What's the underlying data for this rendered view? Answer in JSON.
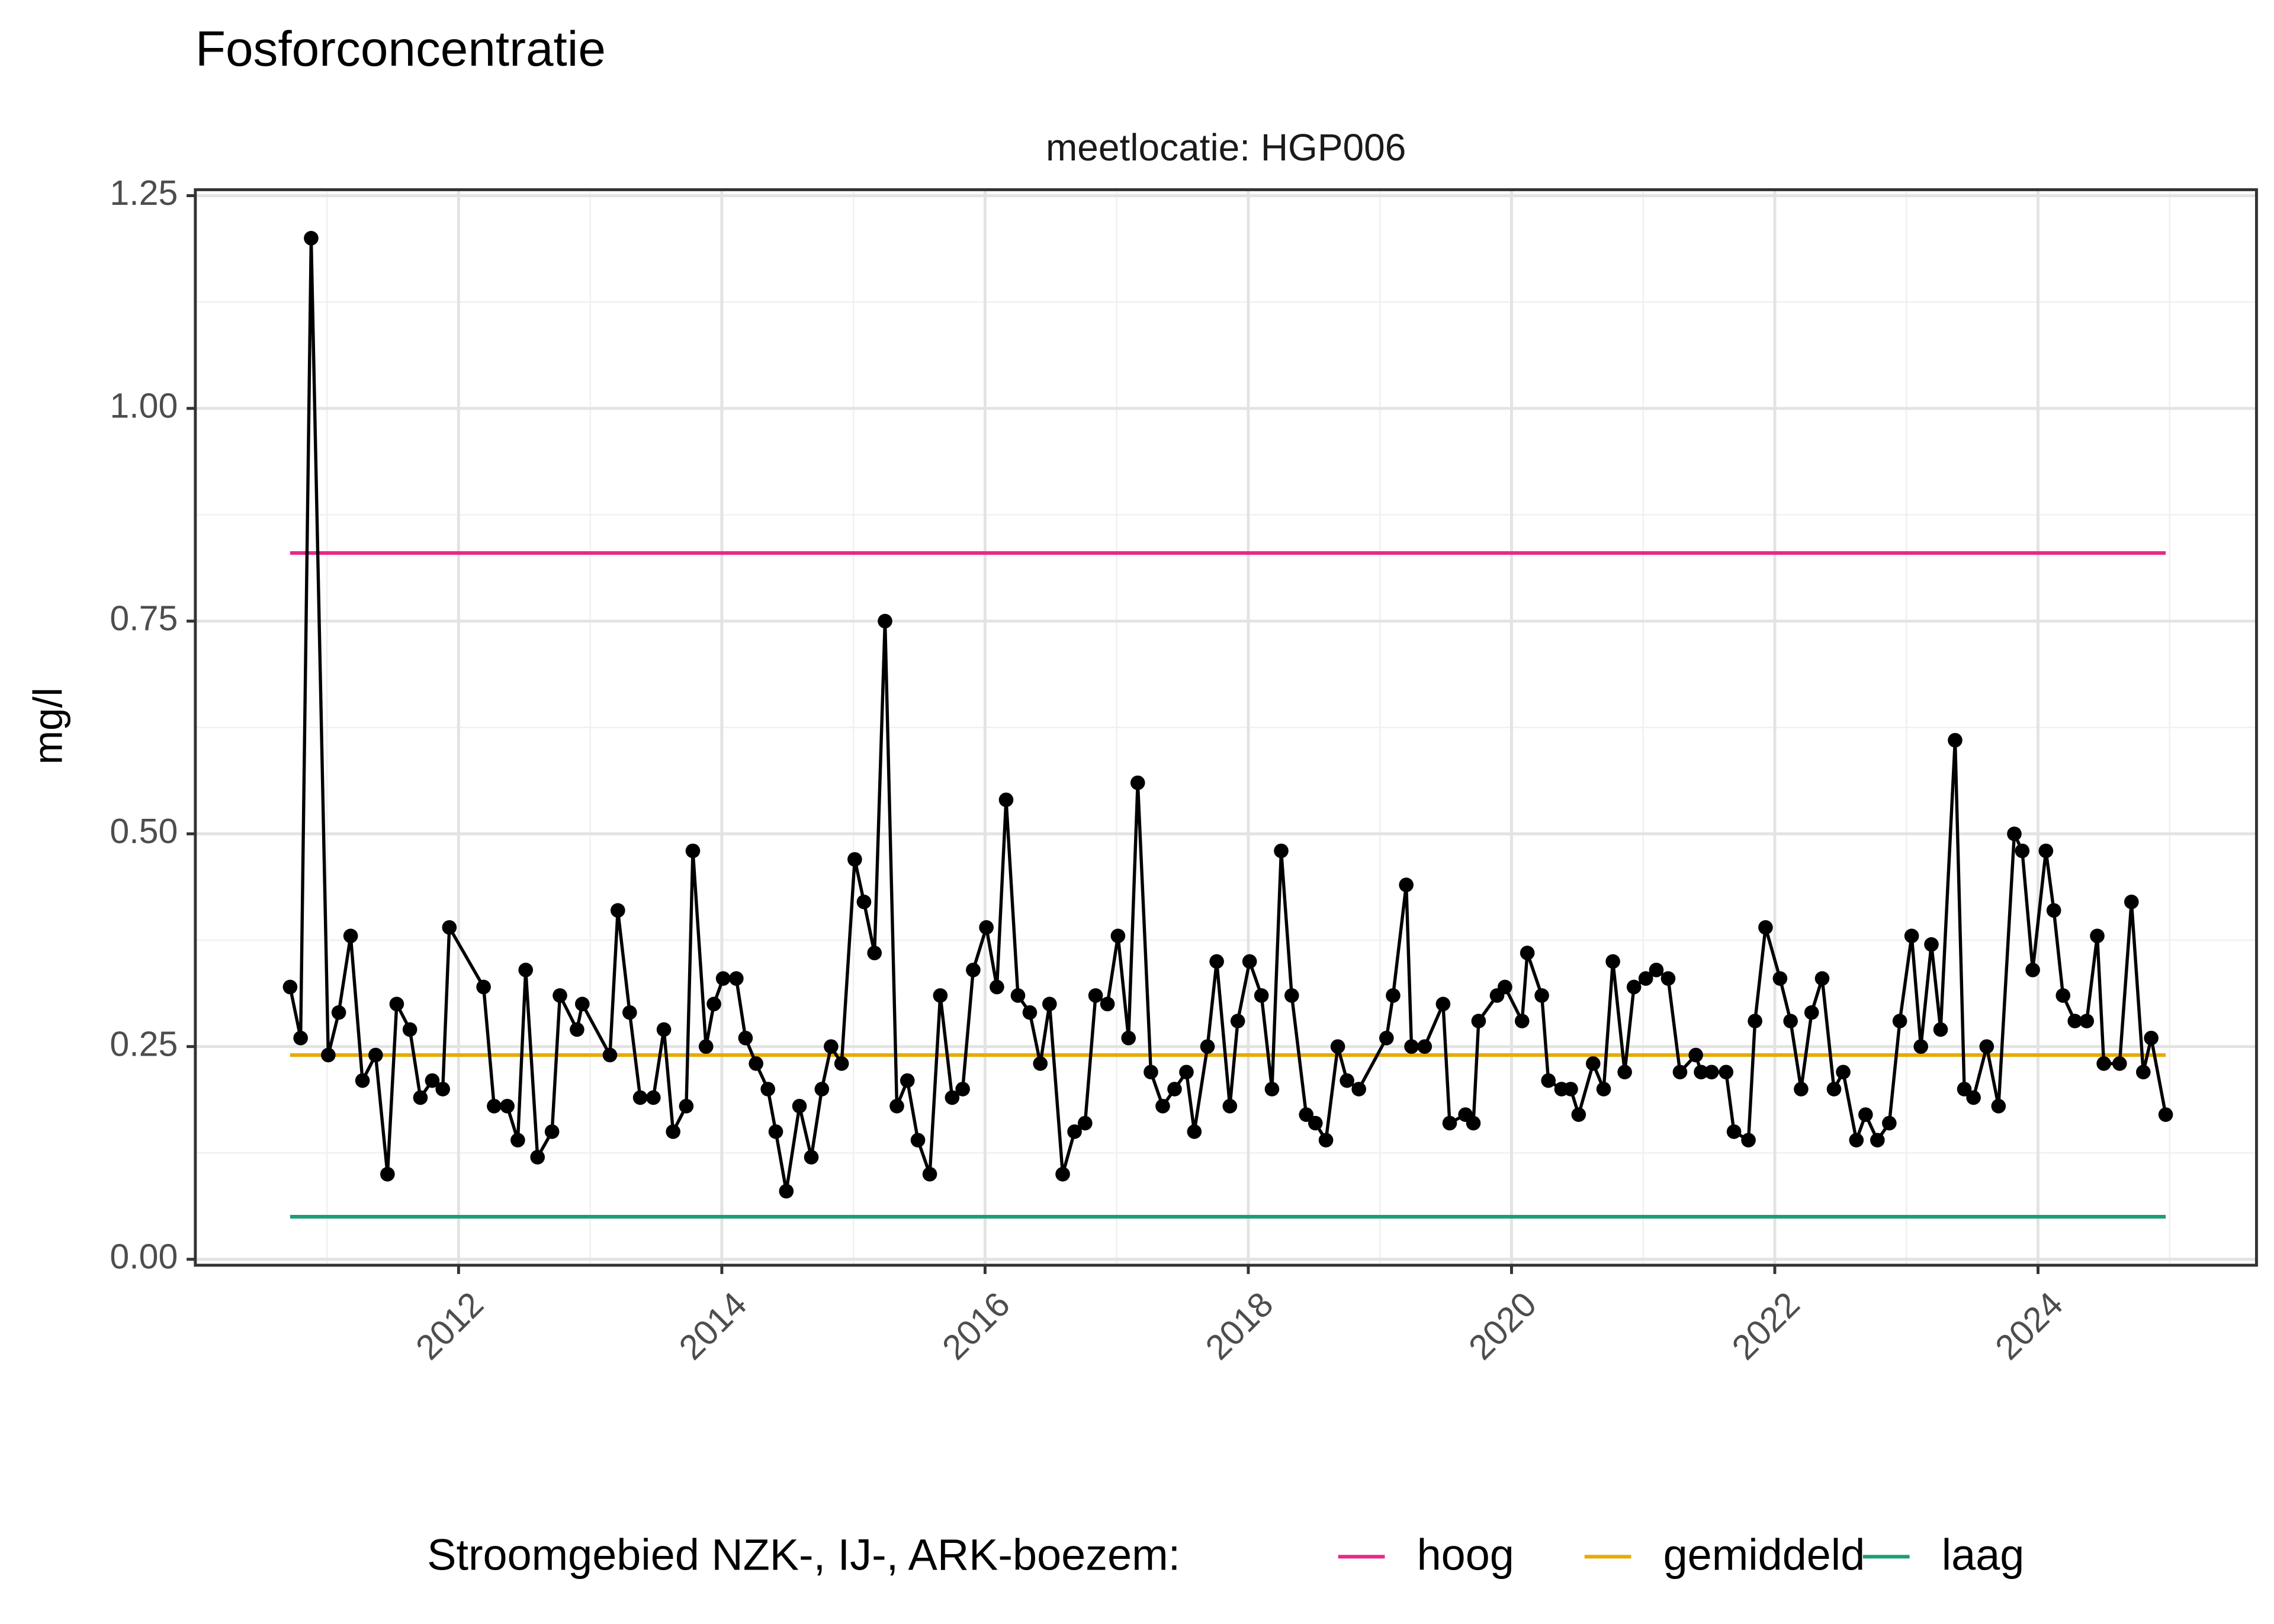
{
  "chart_data": {
    "type": "line",
    "title": "Fosforconcentratie",
    "subtitle": "meetlocatie: HGP006",
    "y_label": "mg/l",
    "legend_title": "Stroomgebied NZK-, IJ-, ARK-boezem:",
    "color": "#000000",
    "grid": true,
    "xlim": [
      2010.0,
      2025.66
    ],
    "ylim": [
      -0.007,
      1.257
    ],
    "xticks": [
      2012,
      2014,
      2016,
      2018,
      2020,
      2022,
      2024
    ],
    "yticks": [
      {
        "value": 0,
        "label": "0.00"
      },
      {
        "value": 0.25,
        "label": "0.25"
      },
      {
        "value": 0.5,
        "label": "0.50"
      },
      {
        "value": 0.75,
        "label": "0.75"
      },
      {
        "value": 1,
        "label": "1.00"
      },
      {
        "value": 1.25,
        "label": "1.25"
      }
    ],
    "reference_lines": [
      {
        "name": "hoog",
        "color": "#e7298a",
        "value": 0.83,
        "x_range": [
          2010.72,
          2024.97
        ]
      },
      {
        "name": "gemiddeld",
        "color": "#e6ab02",
        "value": 0.24,
        "x_range": [
          2010.72,
          2024.97
        ]
      },
      {
        "name": "laag",
        "color": "#1b9e77",
        "value": 0.05,
        "x_range": [
          2010.72,
          2024.97
        ]
      }
    ],
    "x": [
      2010.72,
      2010.8,
      2010.88,
      2011.01,
      2011.09,
      2011.18,
      2011.27,
      2011.37,
      2011.46,
      2011.53,
      2011.63,
      2011.71,
      2011.8,
      2011.88,
      2011.93,
      2012.19,
      2012.27,
      2012.37,
      2012.45,
      2012.51,
      2012.6,
      2012.71,
      2012.77,
      2012.9,
      2012.94,
      2013.15,
      2013.21,
      2013.3,
      2013.38,
      2013.48,
      2013.56,
      2013.63,
      2013.73,
      2013.78,
      2013.88,
      2013.94,
      2014.01,
      2014.11,
      2014.18,
      2014.26,
      2014.35,
      2014.41,
      2014.49,
      2014.59,
      2014.68,
      2014.76,
      2014.83,
      2014.91,
      2015.01,
      2015.08,
      2015.16,
      2015.24,
      2015.33,
      2015.41,
      2015.49,
      2015.58,
      2015.66,
      2015.75,
      2015.83,
      2015.91,
      2016.01,
      2016.09,
      2016.16,
      2016.25,
      2016.34,
      2016.42,
      2016.49,
      2016.59,
      2016.68,
      2016.76,
      2016.84,
      2016.93,
      2017.01,
      2017.09,
      2017.16,
      2017.26,
      2017.35,
      2017.44,
      2017.53,
      2017.59,
      2017.69,
      2017.76,
      2017.86,
      2017.92,
      2018.01,
      2018.1,
      2018.18,
      2018.25,
      2018.33,
      2018.44,
      2018.51,
      2018.59,
      2018.68,
      2018.75,
      2018.84,
      2019.05,
      2019.1,
      2019.2,
      2019.24,
      2019.34,
      2019.48,
      2019.53,
      2019.65,
      2019.71,
      2019.75,
      2019.89,
      2019.95,
      2020.08,
      2020.12,
      2020.23,
      2020.28,
      2020.38,
      2020.45,
      2020.51,
      2020.62,
      2020.7,
      2020.77,
      2020.86,
      2020.93,
      2021.02,
      2021.1,
      2021.19,
      2021.28,
      2021.4,
      2021.44,
      2021.52,
      2021.63,
      2021.69,
      2021.8,
      2021.85,
      2021.93,
      2022.04,
      2022.12,
      2022.2,
      2022.28,
      2022.36,
      2022.45,
      2022.52,
      2022.62,
      2022.69,
      2022.78,
      2022.87,
      2022.95,
      2023.04,
      2023.11,
      2023.19,
      2023.26,
      2023.37,
      2023.44,
      2023.51,
      2023.61,
      2023.7,
      2023.82,
      2023.88,
      2023.96,
      2024.06,
      2024.12,
      2024.19,
      2024.28,
      2024.37,
      2024.45,
      2024.5,
      2024.62,
      2024.71,
      2024.8,
      2024.86,
      2024.97
    ],
    "values": [
      0.32,
      0.26,
      1.2,
      0.24,
      0.29,
      0.38,
      0.21,
      0.24,
      0.1,
      0.3,
      0.27,
      0.19,
      0.21,
      0.2,
      0.39,
      0.32,
      0.18,
      0.18,
      0.14,
      0.34,
      0.12,
      0.15,
      0.31,
      0.27,
      0.3,
      0.24,
      0.41,
      0.29,
      0.19,
      0.19,
      0.27,
      0.15,
      0.18,
      0.48,
      0.25,
      0.3,
      0.33,
      0.33,
      0.26,
      0.23,
      0.2,
      0.15,
      0.08,
      0.18,
      0.12,
      0.2,
      0.25,
      0.23,
      0.47,
      0.42,
      0.36,
      0.75,
      0.18,
      0.21,
      0.14,
      0.1,
      0.31,
      0.19,
      0.2,
      0.34,
      0.39,
      0.32,
      0.54,
      0.31,
      0.29,
      0.23,
      0.3,
      0.1,
      0.15,
      0.16,
      0.31,
      0.3,
      0.38,
      0.26,
      0.56,
      0.22,
      0.18,
      0.2,
      0.22,
      0.15,
      0.25,
      0.35,
      0.18,
      0.28,
      0.35,
      0.31,
      0.2,
      0.48,
      0.31,
      0.17,
      0.16,
      0.14,
      0.25,
      0.21,
      0.2,
      0.26,
      0.31,
      0.44,
      0.25,
      0.25,
      0.3,
      0.16,
      0.17,
      0.16,
      0.28,
      0.31,
      0.32,
      0.28,
      0.36,
      0.31,
      0.21,
      0.2,
      0.2,
      0.17,
      0.23,
      0.2,
      0.35,
      0.22,
      0.32,
      0.33,
      0.34,
      0.33,
      0.22,
      0.24,
      0.22,
      0.22,
      0.22,
      0.15,
      0.14,
      0.28,
      0.39,
      0.33,
      0.28,
      0.2,
      0.29,
      0.33,
      0.2,
      0.22,
      0.14,
      0.17,
      0.14,
      0.16,
      0.28,
      0.38,
      0.25,
      0.37,
      0.27,
      0.61,
      0.2,
      0.19,
      0.25,
      0.18,
      0.5,
      0.48,
      0.34,
      0.48,
      0.41,
      0.31,
      0.28,
      0.28,
      0.38,
      0.23,
      0.23,
      0.42,
      0.22,
      0.26,
      0.17
    ]
  }
}
